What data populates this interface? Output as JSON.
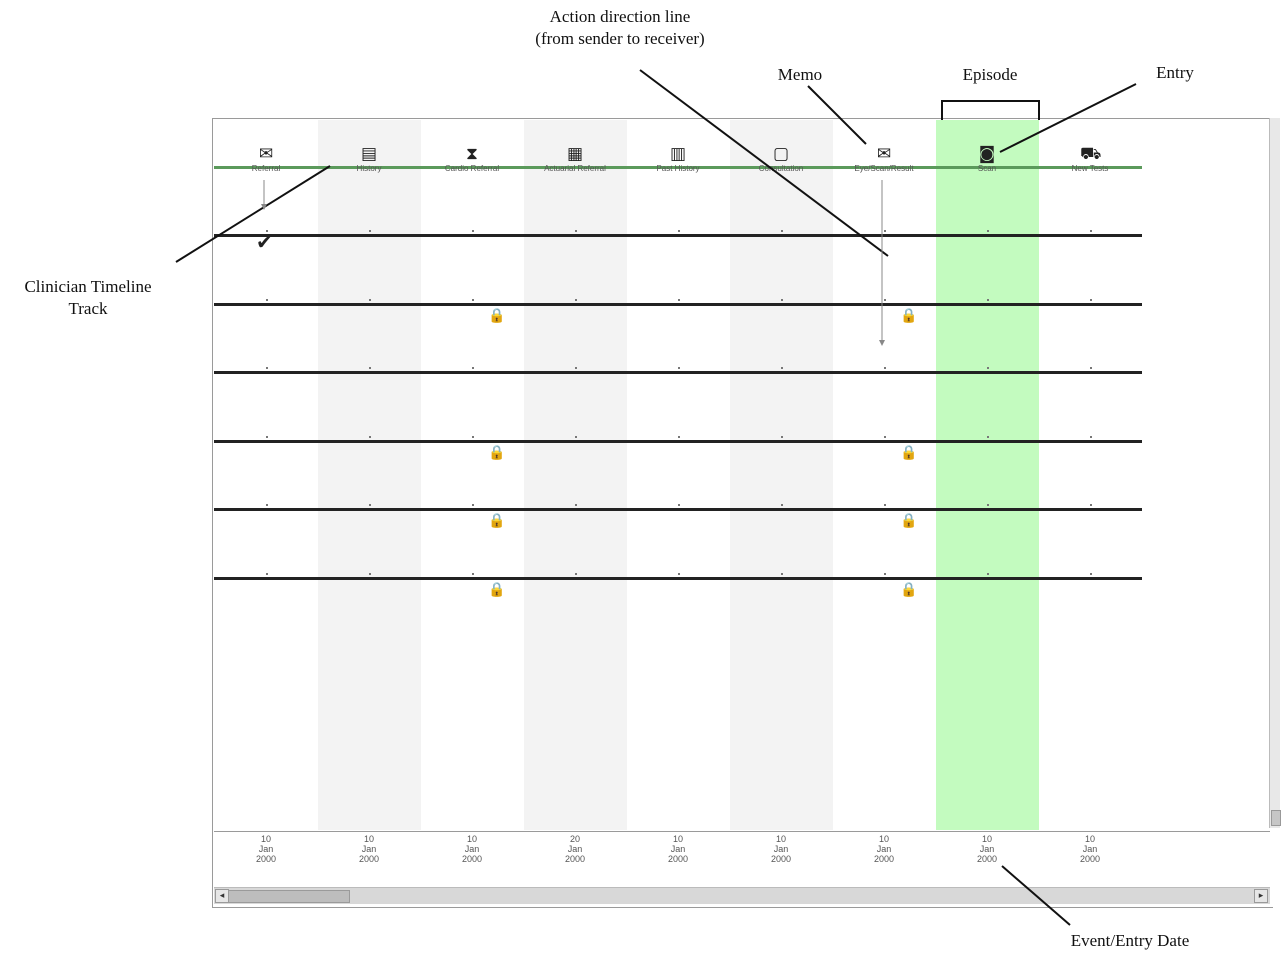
{
  "annotations": {
    "action_direction_line": [
      "Action direction line",
      "(from sender to receiver)"
    ],
    "memo": "Memo",
    "episode": "Episode",
    "entry": "Entry",
    "clinician_timeline_track": [
      "Clinician Timeline",
      "Track"
    ],
    "event_entry_date": "Event/Entry Date"
  },
  "entries": [
    {
      "label": "Referral",
      "icon": "envelope-icon",
      "glyph": "✉"
    },
    {
      "label": "History",
      "icon": "document-icon",
      "glyph": "▤"
    },
    {
      "label": "Cardio Referral",
      "icon": "hourglass-document-icon",
      "glyph": "⧗"
    },
    {
      "label": "Actuarial Referral",
      "icon": "form-icon",
      "glyph": "▦"
    },
    {
      "label": "Past History",
      "icon": "stacked-documents-icon",
      "glyph": "▥"
    },
    {
      "label": "Consultation",
      "icon": "notepad-icon",
      "glyph": "▢"
    },
    {
      "label": "Eye/Scan/Result",
      "icon": "envelope-icon",
      "glyph": "✉"
    },
    {
      "label": "Scan",
      "icon": "camera-icon",
      "glyph": "◙"
    },
    {
      "label": "New Tests",
      "icon": "ambulance-icon",
      "glyph": "⛟"
    }
  ],
  "dates": [
    [
      "10",
      "Jan",
      "2000"
    ],
    [
      "10",
      "Jan",
      "2000"
    ],
    [
      "10",
      "Jan",
      "2000"
    ],
    [
      "20",
      "Jan",
      "2000"
    ],
    [
      "10",
      "Jan",
      "2000"
    ],
    [
      "10",
      "Jan",
      "2000"
    ],
    [
      "10",
      "Jan",
      "2000"
    ],
    [
      "10",
      "Jan",
      "2000"
    ],
    [
      "10",
      "Jan",
      "2000"
    ]
  ],
  "tracks": {
    "count": 6,
    "markers": [
      {
        "track": 0,
        "entry": 0,
        "type": "check-icon"
      },
      {
        "track": 1,
        "entry": 2,
        "type": "lock-icon"
      },
      {
        "track": 1,
        "entry": 6,
        "type": "lock-icon"
      },
      {
        "track": 3,
        "entry": 2,
        "type": "lock-icon"
      },
      {
        "track": 3,
        "entry": 6,
        "type": "lock-icon"
      },
      {
        "track": 4,
        "entry": 2,
        "type": "lock-icon"
      },
      {
        "track": 4,
        "entry": 6,
        "type": "lock-icon"
      },
      {
        "track": 5,
        "entry": 2,
        "type": "lock-icon"
      },
      {
        "track": 5,
        "entry": 6,
        "type": "lock-icon"
      }
    ]
  },
  "episode_entry": 7,
  "shaded_entries": [
    1,
    3,
    5
  ],
  "colors": {
    "episode": "#c3fbbf",
    "shade": "#f3f3f3",
    "track": "#222222",
    "clinician_track": "#5b9a5b",
    "lock": "#6a3040"
  }
}
